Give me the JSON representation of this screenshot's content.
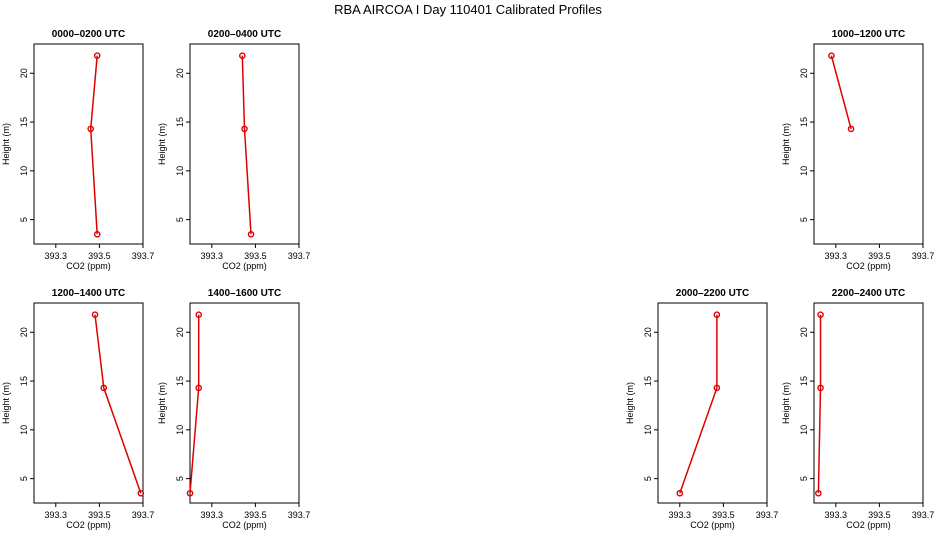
{
  "title": "RBA AIRCOA I  Day 110401  Calibrated Profiles",
  "chart_data": [
    {
      "type": "line",
      "title": "0000–0200 UTC",
      "xlabel": "CO2 (ppm)",
      "ylabel": "Height (m)",
      "xlim": [
        393.2,
        393.7
      ],
      "ylim": [
        2.5,
        23
      ],
      "xticks": [
        393.3,
        393.5,
        393.7
      ],
      "xticklabels": [
        "393.3",
        "393.5",
        "393.7"
      ],
      "yticks": [
        5,
        10,
        15,
        20
      ],
      "yticklabels": [
        "5",
        "10",
        "15",
        "20"
      ],
      "x": [
        393.49,
        393.46,
        393.49
      ],
      "y": [
        3.5,
        14.3,
        21.8
      ],
      "color": "#dd0000"
    },
    {
      "type": "line",
      "title": "0200–0400 UTC",
      "xlabel": "CO2 (ppm)",
      "ylabel": "Height (m)",
      "xlim": [
        393.2,
        393.7
      ],
      "ylim": [
        2.5,
        23
      ],
      "xticks": [
        393.3,
        393.5,
        393.7
      ],
      "xticklabels": [
        "393.3",
        "393.5",
        "393.7"
      ],
      "yticks": [
        5,
        10,
        15,
        20
      ],
      "yticklabels": [
        "5",
        "10",
        "15",
        "20"
      ],
      "x": [
        393.48,
        393.45,
        393.44
      ],
      "y": [
        3.5,
        14.3,
        21.8
      ],
      "color": "#dd0000"
    },
    {
      "type": "line",
      "title": "1000–1200 UTC",
      "xlabel": "CO2 (ppm)",
      "ylabel": "Height (m)",
      "xlim": [
        393.2,
        393.7
      ],
      "ylim": [
        2.5,
        23
      ],
      "xticks": [
        393.3,
        393.5,
        393.7
      ],
      "xticklabels": [
        "393.3",
        "393.5",
        "393.7"
      ],
      "yticks": [
        5,
        10,
        15,
        20
      ],
      "yticklabels": [
        "5",
        "10",
        "15",
        "20"
      ],
      "x": [
        393.37,
        393.28
      ],
      "y": [
        14.3,
        21.8
      ],
      "color": "#dd0000"
    },
    {
      "type": "line",
      "title": "1200–1400 UTC",
      "xlabel": "CO2 (ppm)",
      "ylabel": "Height (m)",
      "xlim": [
        393.2,
        393.7
      ],
      "ylim": [
        2.5,
        23
      ],
      "xticks": [
        393.3,
        393.5,
        393.7
      ],
      "xticklabels": [
        "393.3",
        "393.5",
        "393.7"
      ],
      "yticks": [
        5,
        10,
        15,
        20
      ],
      "yticklabels": [
        "5",
        "10",
        "15",
        "20"
      ],
      "x": [
        393.69,
        393.52,
        393.48
      ],
      "y": [
        3.5,
        14.3,
        21.8
      ],
      "color": "#dd0000"
    },
    {
      "type": "line",
      "title": "1400–1600 UTC",
      "xlabel": "CO2 (ppm)",
      "ylabel": "Height (m)",
      "xlim": [
        393.2,
        393.7
      ],
      "ylim": [
        2.5,
        23
      ],
      "xticks": [
        393.3,
        393.5,
        393.7
      ],
      "xticklabels": [
        "393.3",
        "393.5",
        "393.7"
      ],
      "yticks": [
        5,
        10,
        15,
        20
      ],
      "yticklabels": [
        "5",
        "10",
        "15",
        "20"
      ],
      "x": [
        393.2,
        393.24,
        393.24
      ],
      "y": [
        3.5,
        14.3,
        21.8
      ],
      "color": "#dd0000"
    },
    {
      "type": "line",
      "title": "2000–2200 UTC",
      "xlabel": "CO2 (ppm)",
      "ylabel": "Height (m)",
      "xlim": [
        393.2,
        393.7
      ],
      "ylim": [
        2.5,
        23
      ],
      "xticks": [
        393.3,
        393.5,
        393.7
      ],
      "xticklabels": [
        "393.3",
        "393.5",
        "393.7"
      ],
      "yticks": [
        5,
        10,
        15,
        20
      ],
      "yticklabels": [
        "5",
        "10",
        "15",
        "20"
      ],
      "x": [
        393.3,
        393.47,
        393.47
      ],
      "y": [
        3.5,
        14.3,
        21.8
      ],
      "color": "#dd0000"
    },
    {
      "type": "line",
      "title": "2200–2400 UTC",
      "xlabel": "CO2 (ppm)",
      "ylabel": "Height (m)",
      "xlim": [
        393.2,
        393.7
      ],
      "ylim": [
        2.5,
        23
      ],
      "xticks": [
        393.3,
        393.5,
        393.7
      ],
      "xticklabels": [
        "393.3",
        "393.5",
        "393.7"
      ],
      "yticks": [
        5,
        10,
        15,
        20
      ],
      "yticklabels": [
        "5",
        "10",
        "15",
        "20"
      ],
      "x": [
        393.22,
        393.23,
        393.23
      ],
      "y": [
        3.5,
        14.3,
        21.8
      ],
      "color": "#dd0000"
    }
  ]
}
